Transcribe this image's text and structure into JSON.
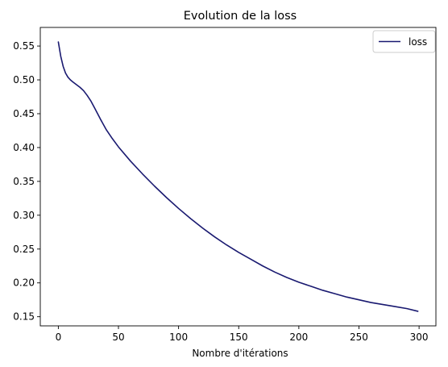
{
  "chart_data": {
    "type": "line",
    "title": "Evolution de la loss",
    "xlabel": "Nombre d'itérations",
    "ylabel": "",
    "xlim": [
      -15,
      314
    ],
    "ylim": [
      0.1365,
      0.5775
    ],
    "x_ticks": [
      0,
      50,
      100,
      150,
      200,
      250,
      300
    ],
    "y_ticks": [
      0.15,
      0.2,
      0.25,
      0.3,
      0.35,
      0.4,
      0.45,
      0.5,
      0.55
    ],
    "y_tick_labels": [
      "0.15",
      "0.20",
      "0.25",
      "0.30",
      "0.35",
      "0.40",
      "0.45",
      "0.50",
      "0.55"
    ],
    "grid": false,
    "legend_position": "top-right",
    "series": [
      {
        "name": "loss",
        "color": "#191970",
        "x": [
          0,
          2,
          4,
          6,
          8,
          10,
          12,
          15,
          18,
          21,
          24,
          27,
          30,
          35,
          40,
          45,
          50,
          60,
          70,
          80,
          90,
          100,
          110,
          120,
          130,
          140,
          150,
          160,
          170,
          180,
          190,
          200,
          210,
          220,
          230,
          240,
          250,
          260,
          270,
          280,
          290,
          299
        ],
        "y": [
          0.556,
          0.535,
          0.52,
          0.51,
          0.504,
          0.5,
          0.497,
          0.493,
          0.489,
          0.484,
          0.477,
          0.469,
          0.459,
          0.442,
          0.426,
          0.413,
          0.401,
          0.38,
          0.361,
          0.343,
          0.326,
          0.31,
          0.295,
          0.281,
          0.268,
          0.256,
          0.245,
          0.235,
          0.225,
          0.216,
          0.208,
          0.201,
          0.195,
          0.189,
          0.184,
          0.179,
          0.175,
          0.171,
          0.168,
          0.165,
          0.162,
          0.158
        ]
      }
    ]
  }
}
